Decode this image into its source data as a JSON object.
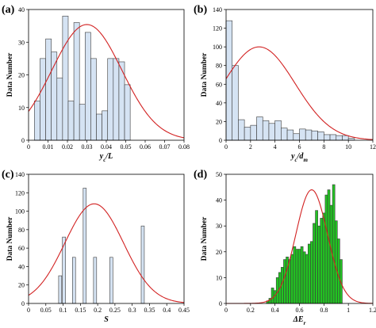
{
  "figure": {
    "panels": [
      "a",
      "b",
      "c",
      "d"
    ]
  },
  "chart_data": [
    {
      "id": "a",
      "panel_label": "(a)",
      "type": "bar",
      "xlabel": "y_c/L",
      "xlabel_parts": [
        {
          "t": "y",
          "i": true
        },
        {
          "t": "c",
          "i": true,
          "sub": true
        },
        {
          "t": "/L",
          "i": true
        }
      ],
      "ylabel": "Data Number",
      "xlim": [
        0,
        0.08
      ],
      "ylim": [
        0,
        40
      ],
      "xticks": [
        0,
        0.01,
        0.02,
        0.03,
        0.04,
        0.05,
        0.06,
        0.07,
        0.08
      ],
      "xticklabels": [
        "0",
        "0.01",
        "0.02",
        "0.03",
        "0.04",
        "0.05",
        "0.06",
        "0.07",
        "0.08"
      ],
      "yticks": [
        0,
        10,
        20,
        30,
        40
      ],
      "yticklabels": [
        "0",
        "10",
        "20",
        "30",
        "40"
      ],
      "bins": {
        "start": 0.003,
        "width": 0.0029,
        "values": [
          12,
          25,
          31,
          27,
          19,
          38,
          12,
          36,
          11,
          33,
          25,
          8,
          9,
          25,
          25,
          24,
          17
        ]
      },
      "fill": "#d5e3f3",
      "fit": {
        "type": "normal",
        "mean": 0.03,
        "sd": 0.018,
        "peak": 35.4,
        "color": "#d22222"
      }
    },
    {
      "id": "b",
      "panel_label": "(b)",
      "type": "bar",
      "xlabel": "y_c/d_m",
      "xlabel_parts": [
        {
          "t": "y",
          "i": true
        },
        {
          "t": "c",
          "i": true,
          "sub": true
        },
        {
          "t": "/d",
          "i": true
        },
        {
          "t": "m",
          "i": true,
          "sub": true
        }
      ],
      "ylabel": "Data Number",
      "xlim": [
        0,
        12
      ],
      "ylim": [
        0,
        140
      ],
      "xticks": [
        0,
        2,
        4,
        6,
        8,
        10,
        12
      ],
      "xticklabels": [
        "0",
        "2",
        "4",
        "6",
        "8",
        "10",
        "12"
      ],
      "yticks": [
        0,
        20,
        40,
        60,
        80,
        100,
        120,
        140
      ],
      "yticklabels": [
        "0",
        "20",
        "40",
        "60",
        "80",
        "100",
        "120",
        "140"
      ],
      "bins": {
        "start": 0,
        "width": 0.5,
        "values": [
          128,
          80,
          22,
          14,
          16,
          25,
          21,
          18,
          21,
          13,
          11,
          7,
          12,
          11,
          10,
          9,
          6,
          6,
          5,
          5,
          2
        ]
      },
      "fill": "#d5e3f3",
      "fit": {
        "type": "normal",
        "mean": 2.7,
        "sd": 2.95,
        "peak": 100,
        "color": "#d22222"
      }
    },
    {
      "id": "c",
      "panel_label": "(c)",
      "type": "bar",
      "xlabel": "S",
      "xlabel_parts": [
        {
          "t": "S",
          "i": true
        }
      ],
      "ylabel": "Data Number",
      "xlim": [
        0,
        0.45
      ],
      "ylim": [
        0,
        140
      ],
      "xticks": [
        0,
        0.05,
        0.1,
        0.15,
        0.2,
        0.25,
        0.3,
        0.35,
        0.4,
        0.45
      ],
      "xticklabels": [
        "0",
        "0.05",
        "0.1",
        "0.15",
        "0.2",
        "0.25",
        "0.3",
        "0.35",
        "0.4",
        "0.45"
      ],
      "yticks": [
        0,
        20,
        40,
        60,
        80,
        100,
        120,
        140
      ],
      "yticklabels": [
        "0",
        "20",
        "40",
        "60",
        "80",
        "100",
        "120",
        "140"
      ],
      "bars": [
        {
          "x": 0.087,
          "w": 0.009,
          "v": 30
        },
        {
          "x": 0.098,
          "w": 0.009,
          "v": 72
        },
        {
          "x": 0.127,
          "w": 0.009,
          "v": 50
        },
        {
          "x": 0.158,
          "w": 0.009,
          "v": 125
        },
        {
          "x": 0.188,
          "w": 0.009,
          "v": 50
        },
        {
          "x": 0.235,
          "w": 0.009,
          "v": 50
        },
        {
          "x": 0.326,
          "w": 0.009,
          "v": 84
        }
      ],
      "fill": "#d5e3f3",
      "fit": {
        "type": "normal",
        "mean": 0.19,
        "sd": 0.085,
        "peak": 108,
        "color": "#d22222"
      }
    },
    {
      "id": "d",
      "panel_label": "(d)",
      "type": "bar",
      "xlabel": "ΔE_r",
      "xlabel_parts": [
        {
          "t": "ΔE",
          "i": true
        },
        {
          "t": "r",
          "i": true,
          "sub": true
        }
      ],
      "ylabel": "Data Number",
      "xlim": [
        0,
        1.2
      ],
      "ylim": [
        0,
        50
      ],
      "xticks": [
        0,
        0.2,
        0.4,
        0.6,
        0.8,
        1.0,
        1.2
      ],
      "xticklabels": [
        "0",
        "0.2",
        "0.4",
        "0.6",
        "0.8",
        "1",
        "1.2"
      ],
      "yticks": [
        0,
        10,
        20,
        30,
        40,
        50
      ],
      "yticklabels": [
        "0",
        "10",
        "20",
        "30",
        "40",
        "50"
      ],
      "bins": {
        "start": 0.33,
        "width": 0.02,
        "values": [
          1,
          2,
          6,
          5,
          10,
          12,
          14,
          17,
          18,
          17,
          19,
          22,
          21,
          21,
          22,
          20,
          19,
          23,
          24,
          31,
          36,
          30,
          33,
          35,
          42,
          44,
          38,
          46,
          32,
          25,
          17
        ]
      },
      "fill": "#22c422",
      "fit": {
        "type": "normal",
        "mean": 0.7,
        "sd": 0.13,
        "peak": 44,
        "color": "#d22222"
      }
    }
  ]
}
